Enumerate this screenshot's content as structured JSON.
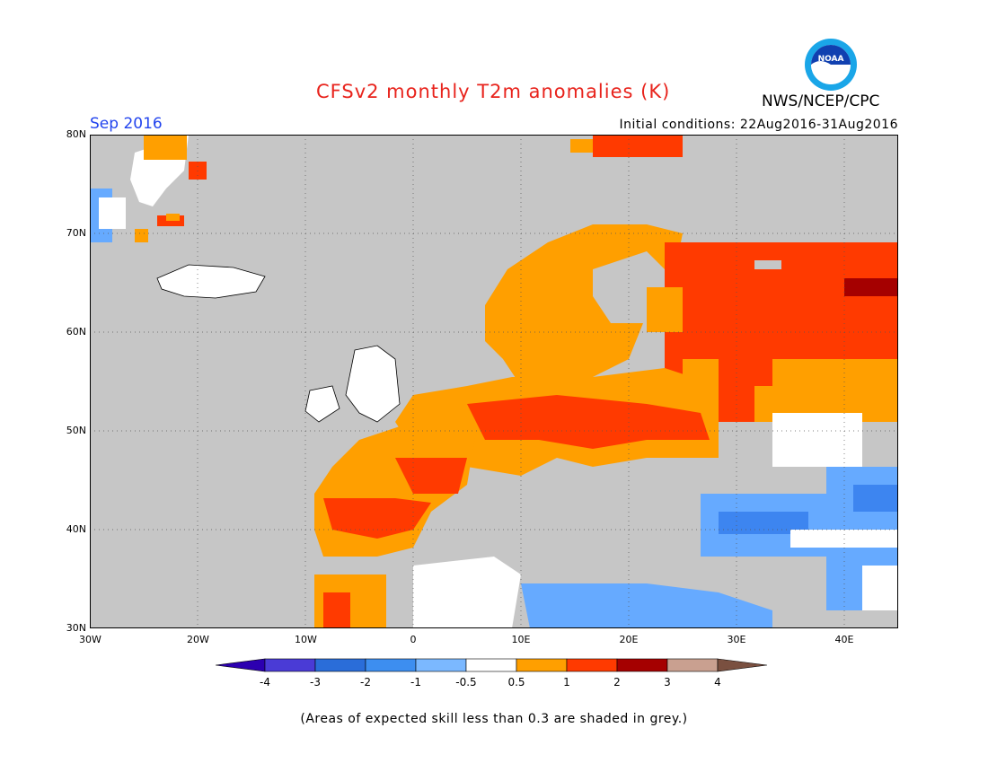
{
  "header": {
    "title": "CFSv2 monthly T2m anomalies (K)",
    "month": "Sep 2016",
    "initial_conditions": "Initial conditions: 22Aug2016-31Aug2016",
    "agency": "NWS/NCEP/CPC",
    "logo_text": "NOAA"
  },
  "map": {
    "lon_labels": [
      "30W",
      "20W",
      "10W",
      "0",
      "10E",
      "20E",
      "30E",
      "40E"
    ],
    "lat_labels": [
      "80N",
      "70N",
      "60N",
      "50N",
      "40N",
      "30N"
    ],
    "lon_range": [
      -30,
      45
    ],
    "lat_range": [
      30,
      80
    ],
    "grid": "dotted",
    "colors": {
      "ocean_grey": "#c6c6c6",
      "neutral": "#ffffff",
      "warm_05_1": "#ff9f00",
      "warm_1_2": "#ff3a00",
      "warm_2_3": "#a50000",
      "cool_05_1": "#66aaff",
      "cool_1_2": "#3d85f0"
    }
  },
  "colorbar": {
    "labels": [
      "-4",
      "-3",
      "-2",
      "-1",
      "-0.5",
      "0.5",
      "1",
      "2",
      "3",
      "4"
    ],
    "colors": [
      "#2c00b0",
      "#4a3bd6",
      "#2a6dd9",
      "#3d8ef0",
      "#7bb8ff",
      "#ffffff",
      "#ff9f00",
      "#ff3a00",
      "#a50000",
      "#c9a090",
      "#7a5040"
    ]
  },
  "note": "(Areas of expected skill less than 0.3 are shaded in grey.)"
}
